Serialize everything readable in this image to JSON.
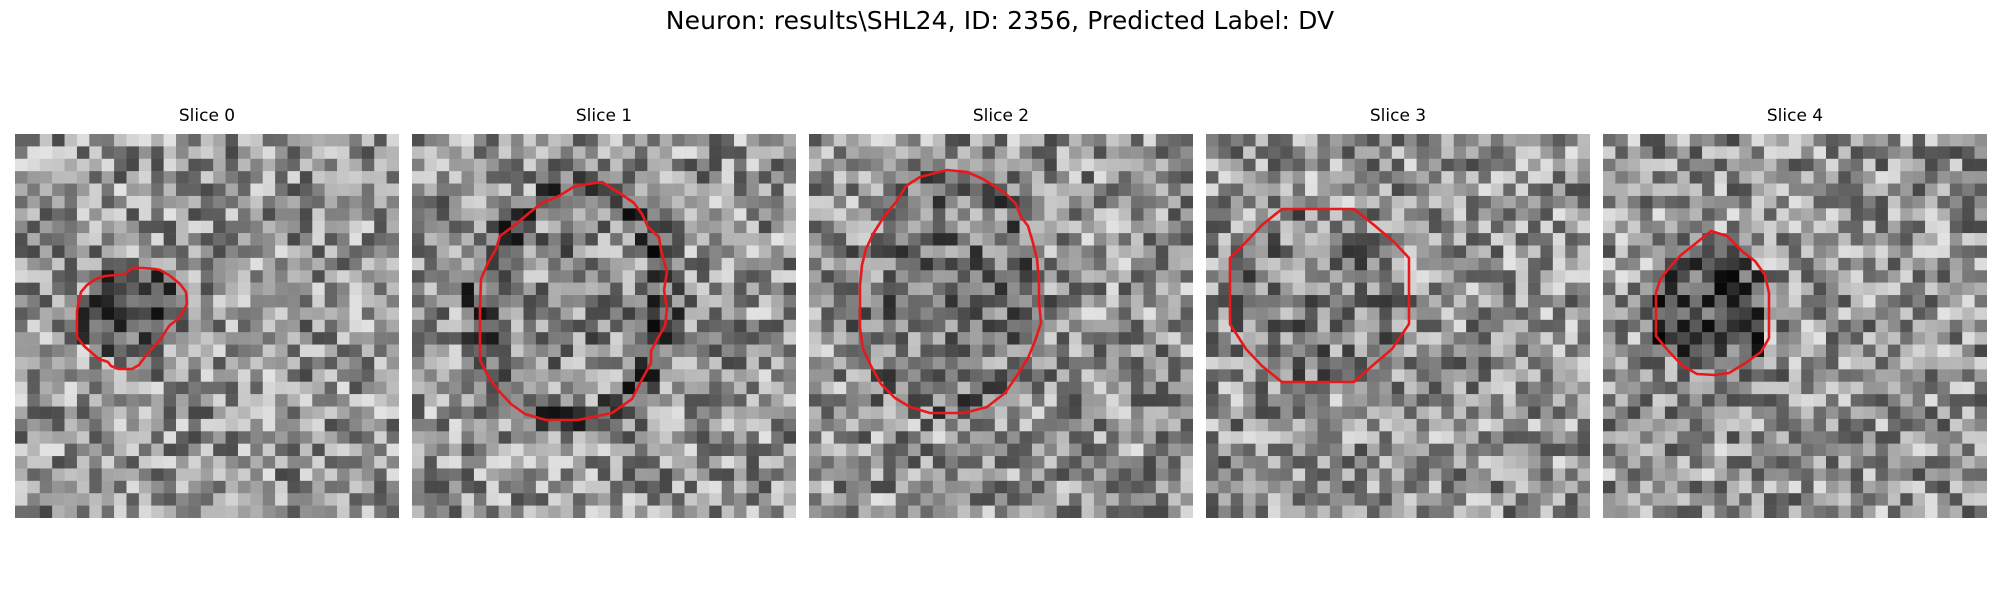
{
  "figure": {
    "suptitle": "Neuron: results\\SHL24, ID: 2356, Predicted Label: DV"
  },
  "panels": [
    {
      "title": "Slice 0",
      "seed": 11,
      "blob_darkness": 0.22,
      "ring_darkness": 0.0
    },
    {
      "title": "Slice 1",
      "seed": 23,
      "blob_darkness": 0.05,
      "ring_darkness": 0.22
    },
    {
      "title": "Slice 2",
      "seed": 37,
      "blob_darkness": 0.1,
      "ring_darkness": 0.05
    },
    {
      "title": "Slice 3",
      "seed": 41,
      "blob_darkness": 0.08,
      "ring_darkness": 0.0
    },
    {
      "title": "Slice 4",
      "seed": 53,
      "blob_darkness": 0.25,
      "ring_darkness": 0.0
    }
  ],
  "colors": {
    "contour": "#e8191c",
    "background": "#ffffff"
  }
}
